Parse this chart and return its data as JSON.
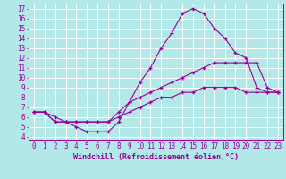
{
  "background_color": "#b2e8e8",
  "grid_color": "#ffffff",
  "line_color": "#990099",
  "xlabel": "Windchill (Refroidissement éolien,°C)",
  "xlabel_fontsize": 6,
  "tick_fontsize": 5.5,
  "xlim_min": -0.5,
  "xlim_max": 23.5,
  "ylim_min": 3.7,
  "ylim_max": 17.5,
  "xticks": [
    0,
    1,
    2,
    3,
    4,
    5,
    6,
    7,
    8,
    9,
    10,
    11,
    12,
    13,
    14,
    15,
    16,
    17,
    18,
    19,
    20,
    21,
    22,
    23
  ],
  "yticks": [
    4,
    5,
    6,
    7,
    8,
    9,
    10,
    11,
    12,
    13,
    14,
    15,
    16,
    17
  ],
  "line1_x": [
    0,
    1,
    2,
    3,
    4,
    5,
    6,
    7,
    8,
    9,
    10,
    11,
    12,
    13,
    14,
    15,
    16,
    17,
    18,
    19,
    20,
    21,
    22,
    23
  ],
  "line1_y": [
    6.5,
    6.5,
    6.0,
    5.5,
    5.0,
    4.5,
    4.5,
    4.5,
    5.5,
    7.5,
    9.5,
    11.0,
    13.0,
    14.5,
    16.5,
    17.0,
    16.5,
    15.0,
    14.0,
    12.5,
    12.0,
    9.0,
    8.5,
    8.5
  ],
  "line2_x": [
    0,
    1,
    2,
    3,
    4,
    5,
    6,
    7,
    8,
    9,
    10,
    11,
    12,
    13,
    14,
    15,
    16,
    17,
    18,
    19,
    20,
    21,
    22,
    23
  ],
  "line2_y": [
    6.5,
    6.5,
    5.5,
    5.5,
    5.5,
    5.5,
    5.5,
    5.5,
    6.5,
    7.5,
    8.0,
    8.5,
    9.0,
    9.5,
    10.0,
    10.5,
    11.0,
    11.5,
    11.5,
    11.5,
    11.5,
    11.5,
    9.0,
    8.5
  ],
  "line3_x": [
    0,
    1,
    2,
    3,
    4,
    5,
    6,
    7,
    8,
    9,
    10,
    11,
    12,
    13,
    14,
    15,
    16,
    17,
    18,
    19,
    20,
    21,
    22,
    23
  ],
  "line3_y": [
    6.5,
    6.5,
    5.5,
    5.5,
    5.5,
    5.5,
    5.5,
    5.5,
    6.0,
    6.5,
    7.0,
    7.5,
    8.0,
    8.0,
    8.5,
    8.5,
    9.0,
    9.0,
    9.0,
    9.0,
    8.5,
    8.5,
    8.5,
    8.5
  ]
}
